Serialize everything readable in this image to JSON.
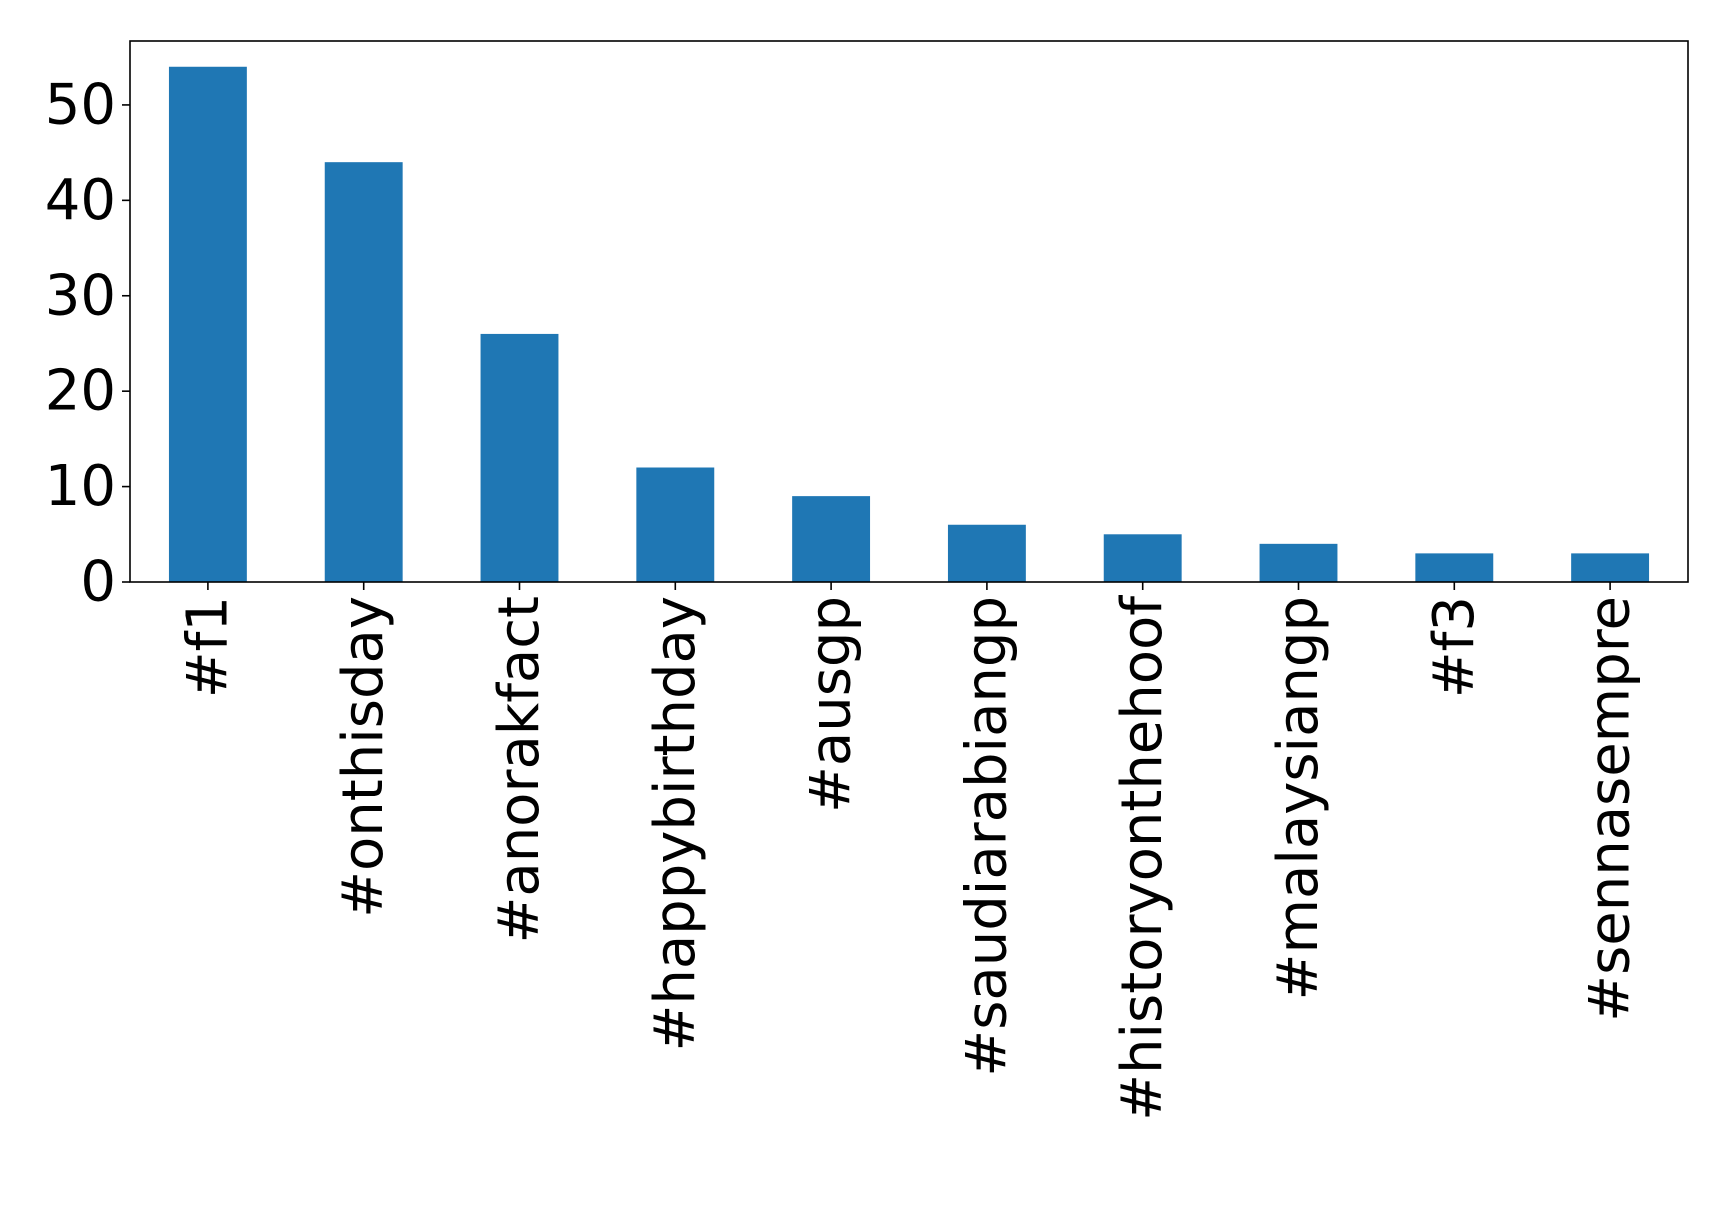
{
  "chart_data": {
    "type": "bar",
    "title": "",
    "xlabel": "",
    "ylabel": "",
    "categories": [
      "#f1",
      "#onthisday",
      "#anorakfact",
      "#happybirthday",
      "#ausgp",
      "#saudiarabiangp",
      "#historyonthehoof",
      "#malaysiangp",
      "#f3",
      "#sennasempre"
    ],
    "values": [
      54,
      44,
      26,
      12,
      9,
      6,
      5,
      4,
      3,
      3
    ],
    "ylim": [
      0,
      56.7
    ],
    "yticks": [
      0,
      10,
      20,
      30,
      40,
      50
    ],
    "ytick_labels": [
      "0",
      "10",
      "20",
      "30",
      "40",
      "50"
    ],
    "bar_color": "#1f77b4",
    "grid": false,
    "legend": "none"
  }
}
